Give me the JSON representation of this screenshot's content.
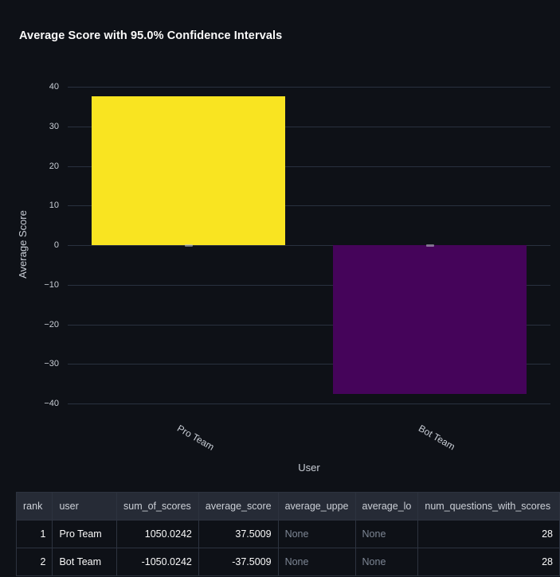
{
  "chart_data": {
    "type": "bar",
    "title": "Average Score with 95.0% Confidence Intervals",
    "confidence_level": "95.0%",
    "xlabel": "User",
    "ylabel": "Average Score",
    "categories": [
      "Pro Team",
      "Bot Team"
    ],
    "values": [
      37.5009,
      -37.5009
    ],
    "bar_colors": [
      "#f9e421",
      "#45045a"
    ],
    "error_marker_values": [
      0,
      0
    ],
    "error_marker_color": "#c3c8d0",
    "ylim": [
      -40,
      40
    ],
    "yticks": [
      40,
      30,
      20,
      10,
      0,
      -10,
      -20,
      -30,
      -40
    ],
    "grid": "horizontal",
    "legend": false,
    "x_tick_angle_deg": 30
  },
  "table": {
    "columns": [
      {
        "label": "rank",
        "align": "right"
      },
      {
        "label": "user",
        "align": "left"
      },
      {
        "label": "sum_of_scores",
        "align": "right"
      },
      {
        "label": "average_score",
        "align": "right"
      },
      {
        "label": "average_uppe",
        "align": "left",
        "truncated": true
      },
      {
        "label": "average_lo",
        "align": "left",
        "truncated": true
      },
      {
        "label": "num_questions_with_scores",
        "align": "right"
      }
    ],
    "rows": [
      [
        "1",
        "Pro Team",
        "1050.0242",
        "37.5009",
        "None",
        "None",
        "28"
      ],
      [
        "2",
        "Bot Team",
        "-1050.0242",
        "-37.5009",
        "None",
        "None",
        "28"
      ]
    ]
  }
}
